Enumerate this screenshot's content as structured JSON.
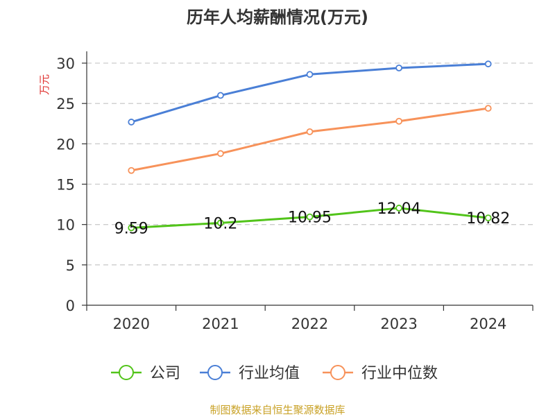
{
  "chart_data": {
    "type": "line",
    "title": "历年人均薪酬情况(万元)",
    "ylabel": "万元",
    "xlabel": "",
    "categories": [
      "2020",
      "2021",
      "2022",
      "2023",
      "2024"
    ],
    "ylim": [
      0,
      30
    ],
    "yticks": [
      0,
      5,
      10,
      15,
      20,
      25,
      30
    ],
    "grid": true,
    "legend_position": "bottom-center",
    "series": [
      {
        "name": "公司",
        "color": "#52c41a",
        "values": [
          9.59,
          10.2,
          10.95,
          12.04,
          10.82
        ],
        "data_labels": [
          "9.59",
          "10.2",
          "10.95",
          "12.04",
          "10.82"
        ]
      },
      {
        "name": "行业均值",
        "color": "#4a7fd6",
        "values": [
          22.7,
          26.0,
          28.6,
          29.4,
          29.9
        ]
      },
      {
        "name": "行业中位数",
        "color": "#f7925a",
        "values": [
          16.7,
          18.8,
          21.5,
          22.8,
          24.4
        ]
      }
    ]
  },
  "source_text": "制图数据来自恒生聚源数据库",
  "colors": {
    "title": "#333333",
    "ylabel": "#e0322f",
    "axis": "#333333",
    "grid": "#cccccc",
    "source": "#c9a227"
  }
}
